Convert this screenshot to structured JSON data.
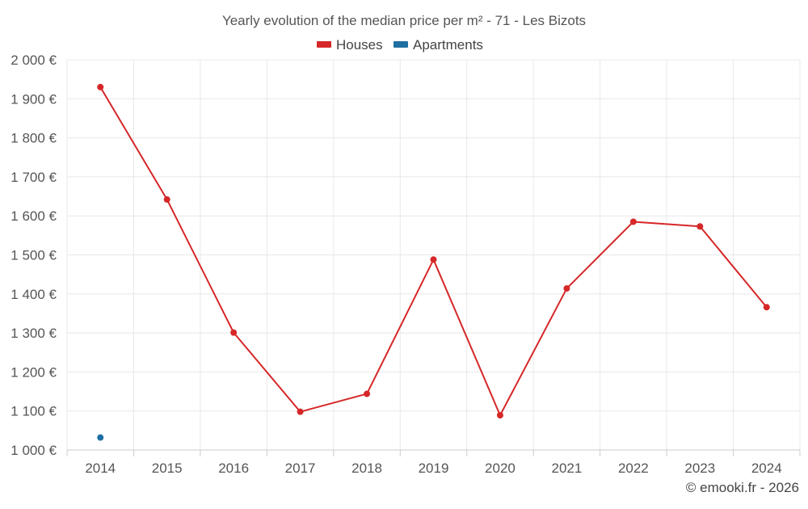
{
  "chart_data": {
    "type": "line",
    "title": "Yearly evolution of the median price per m² - 71 - Les Bizots",
    "xlabel": "",
    "ylabel": "",
    "categories": [
      "2014",
      "2015",
      "2016",
      "2017",
      "2018",
      "2019",
      "2020",
      "2021",
      "2022",
      "2023",
      "2024"
    ],
    "ylim": [
      1000,
      2000
    ],
    "yticks": [
      1000,
      1100,
      1200,
      1300,
      1400,
      1500,
      1600,
      1700,
      1800,
      1900,
      2000
    ],
    "ytick_labels": [
      "1 000 €",
      "1 100 €",
      "1 200 €",
      "1 300 €",
      "1 400 €",
      "1 500 €",
      "1 600 €",
      "1 700 €",
      "1 800 €",
      "1 900 €",
      "2 000 €"
    ],
    "grid": true,
    "legend_position": "top-center",
    "series": [
      {
        "name": "Houses",
        "color": "#d62728",
        "values": [
          1930,
          1642,
          1301,
          1098,
          1144,
          1488,
          1089,
          1414,
          1585,
          1573,
          1366
        ]
      },
      {
        "name": "Apartments",
        "color": "#1f6fa3",
        "values": [
          1032,
          null,
          null,
          null,
          null,
          null,
          null,
          null,
          null,
          null,
          null
        ]
      }
    ]
  },
  "credit": "© emooki.fr - 2026"
}
